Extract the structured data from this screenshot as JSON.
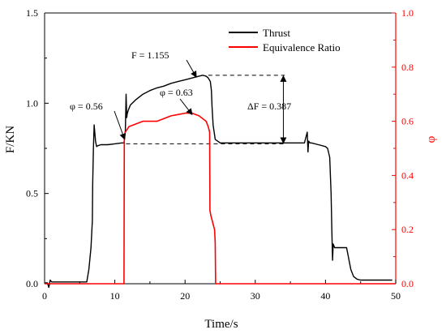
{
  "chart_data": {
    "type": "line",
    "xlabel": "Time/s",
    "ylabel_left": "F/KN",
    "ylabel_right": "φ",
    "xlim": [
      0,
      50
    ],
    "ylim_left": [
      0,
      1.5
    ],
    "ylim_right": [
      0,
      1.0
    ],
    "xticks": [
      "0",
      "10",
      "20",
      "30",
      "40",
      "50"
    ],
    "yticks_left": [
      "0.0",
      "0.5",
      "1.0",
      "1.5"
    ],
    "yticks_right": [
      "0.0",
      "0.2",
      "0.4",
      "0.6",
      "0.8",
      "1.0"
    ],
    "legend_position": "top-right",
    "grid": false,
    "series": [
      {
        "name": "Thrust",
        "axis": "left",
        "color": "#000000",
        "x": [
          0,
          0.4,
          0.6,
          0.8,
          1,
          3,
          5,
          6,
          6.3,
          6.6,
          6.8,
          6.85,
          6.95,
          7.05,
          7.25,
          7.4,
          7.6,
          8,
          9,
          10,
          11,
          11.3,
          11.5,
          11.6,
          11.7,
          11.75,
          11.9,
          12.2,
          13,
          14,
          15,
          16,
          17,
          18,
          19,
          20,
          21,
          22,
          22.5,
          23,
          23.3,
          23.6,
          23.75,
          23.85,
          24,
          24.3,
          25,
          27,
          30,
          33,
          35,
          37,
          37.4,
          37.5,
          37.6,
          37.8,
          38,
          39,
          40,
          40.3,
          40.6,
          40.8,
          40.9,
          41.0,
          41.1,
          41.3,
          41.6,
          42,
          43,
          43.3,
          43.6,
          44,
          44.5,
          45,
          46,
          48,
          49.5
        ],
        "y": [
          0.005,
          0.005,
          -0.02,
          0.02,
          0.01,
          0.01,
          0.01,
          0.01,
          0.08,
          0.2,
          0.35,
          0.55,
          0.75,
          0.88,
          0.79,
          0.76,
          0.765,
          0.77,
          0.77,
          0.775,
          0.78,
          0.78,
          0.85,
          1.05,
          0.92,
          0.94,
          0.96,
          0.99,
          1.02,
          1.05,
          1.07,
          1.085,
          1.095,
          1.11,
          1.12,
          1.13,
          1.14,
          1.15,
          1.155,
          1.15,
          1.14,
          1.12,
          1.07,
          0.98,
          0.88,
          0.8,
          0.78,
          0.78,
          0.78,
          0.78,
          0.78,
          0.78,
          0.84,
          0.73,
          0.79,
          0.78,
          0.78,
          0.77,
          0.76,
          0.75,
          0.7,
          0.5,
          0.3,
          0.13,
          0.22,
          0.2,
          0.2,
          0.2,
          0.2,
          0.14,
          0.08,
          0.04,
          0.025,
          0.02,
          0.02,
          0.02,
          0.02
        ]
      },
      {
        "name": "Equivalence Ratio",
        "axis": "right",
        "color": "#ff0000",
        "x": [
          0,
          11.0,
          11.3,
          11.35,
          11.5,
          12,
          13,
          14,
          15,
          16,
          17,
          18,
          19,
          20,
          21,
          22,
          23,
          23.3,
          23.5,
          23.55,
          23.7,
          24.0,
          24.2,
          24.3,
          24.35,
          25,
          50
        ],
        "y": [
          0,
          0,
          0,
          0.55,
          0.56,
          0.58,
          0.59,
          0.6,
          0.6,
          0.6,
          0.61,
          0.62,
          0.625,
          0.63,
          0.63,
          0.62,
          0.6,
          0.58,
          0.56,
          0.27,
          0.25,
          0.22,
          0.2,
          0.15,
          0,
          0,
          0
        ]
      }
    ],
    "annotations": [
      {
        "text": "F = 1.155"
      },
      {
        "text": "φ = 0.63"
      },
      {
        "text": "φ = 0.56"
      },
      {
        "text": "ΔF = 0.387"
      }
    ]
  }
}
